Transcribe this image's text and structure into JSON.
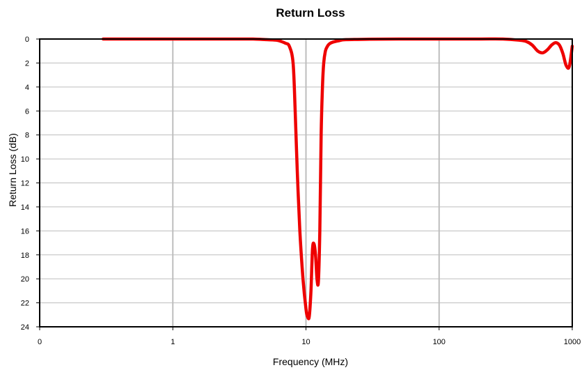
{
  "chart_data": {
    "type": "line",
    "title": "Return Loss",
    "xlabel": "Frequency (MHz)",
    "ylabel": "Return Loss (dB)",
    "x_scale": "log",
    "xlim": [
      0.1,
      1000
    ],
    "ylim": [
      0,
      24
    ],
    "y_inverted": true,
    "x_tick_labels": [
      "0",
      "1",
      "10",
      "100",
      "1000"
    ],
    "x_tick_values": [
      0.1,
      1,
      10,
      100,
      1000
    ],
    "y_tick_values": [
      0,
      2,
      4,
      6,
      8,
      10,
      12,
      14,
      16,
      18,
      20,
      22,
      24
    ],
    "y_tick_labels": [
      "0",
      "2",
      "4",
      "6",
      "8",
      "10",
      "12",
      "14",
      "16",
      "18",
      "20",
      "22",
      "24"
    ],
    "grid": {
      "vertical": true,
      "horizontal": true
    },
    "legend": "none",
    "series": [
      {
        "color": "#ee0000",
        "x": [
          0.3,
          0.5,
          1,
          2,
          3,
          4,
          5,
          6,
          6.5,
          7,
          7.5,
          8,
          8.3,
          8.6,
          9,
          9.5,
          10,
          10.3,
          10.6,
          10.9,
          11.2,
          11.5,
          11.8,
          12.1,
          12.4,
          12.7,
          13,
          13.3,
          13.6,
          14,
          14.5,
          15,
          16,
          18,
          20,
          30,
          50,
          100,
          200,
          300,
          400,
          450,
          500,
          550,
          600,
          650,
          700,
          750,
          800,
          850,
          900,
          950,
          1000
        ],
        "y": [
          0,
          0,
          0,
          0,
          0,
          0,
          0.05,
          0.1,
          0.2,
          0.35,
          0.6,
          2,
          6,
          11,
          16,
          20,
          22.5,
          23.2,
          23.1,
          21,
          17.5,
          17.1,
          18,
          20,
          20.2,
          16,
          8,
          4,
          2,
          1,
          0.6,
          0.4,
          0.25,
          0.12,
          0.05,
          0.02,
          0,
          0,
          0,
          0,
          0.1,
          0.2,
          0.5,
          1.0,
          1.15,
          0.9,
          0.5,
          0.3,
          0.5,
          1.2,
          2.2,
          2.3,
          0.6
        ]
      }
    ]
  }
}
